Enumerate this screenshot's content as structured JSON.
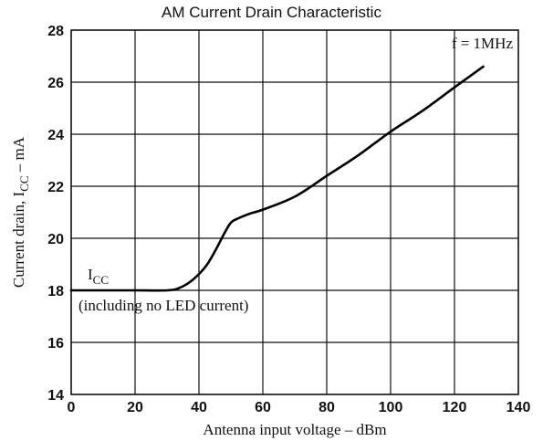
{
  "chart_data": {
    "type": "line",
    "title": "AM Current Drain Characteristic",
    "xlabel": "Antenna input voltage  –  dBm",
    "ylabel": "Current drain, I",
    "ylabel_sub": "CC",
    "ylabel_unit": "  –  mA",
    "xlim": [
      0,
      140
    ],
    "ylim": [
      14,
      28
    ],
    "xticks": [
      0,
      20,
      40,
      60,
      80,
      100,
      120,
      140
    ],
    "yticks": [
      14,
      16,
      18,
      20,
      22,
      24,
      26,
      28
    ],
    "grid": true,
    "series": [
      {
        "name": "I",
        "name_sub": "CC",
        "x": [
          0,
          10,
          20,
          30,
          34,
          38,
          42,
          45,
          48,
          50,
          52,
          56,
          60,
          70,
          80,
          90,
          100,
          110,
          120,
          129
        ],
        "y": [
          18,
          18,
          18,
          18,
          18.1,
          18.4,
          18.9,
          19.5,
          20.2,
          20.6,
          20.75,
          20.95,
          21.1,
          21.6,
          22.4,
          23.2,
          24.1,
          24.9,
          25.8,
          26.6
        ]
      }
    ],
    "annotations": {
      "frequency": "f = 1MHz",
      "series_note": "(including no LED current)"
    }
  }
}
